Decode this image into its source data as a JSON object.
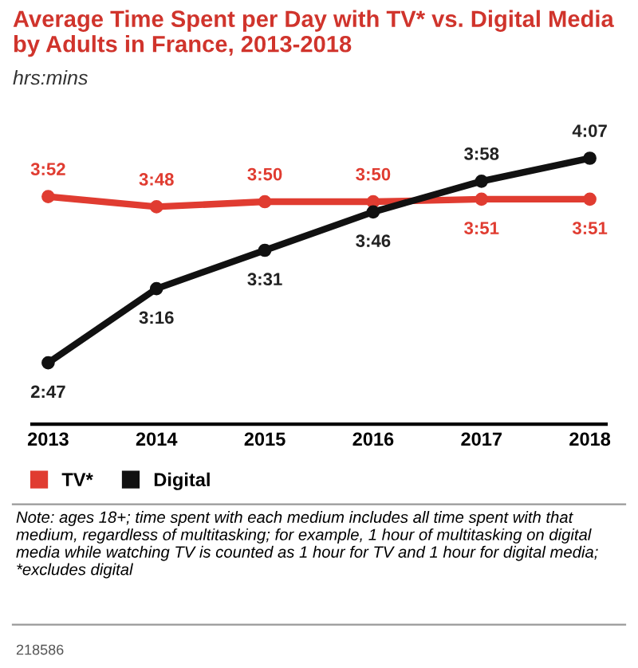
{
  "chart_data": {
    "type": "line",
    "title": "Average Time Spent per Day with TV* vs. Digital Media by Adults in France, 2013-2018",
    "subtitle": "hrs:mins",
    "categories": [
      "2013",
      "2014",
      "2015",
      "2016",
      "2017",
      "2018"
    ],
    "series": [
      {
        "name": "TV*",
        "color": "#e03c31",
        "values": [
          232,
          228,
          230,
          230,
          231,
          231
        ],
        "value_labels": [
          "3:52",
          "3:48",
          "3:50",
          "3:50",
          "3:51",
          "3:51"
        ]
      },
      {
        "name": "Digital",
        "color": "#111111",
        "values": [
          167,
          196,
          211,
          226,
          238,
          247
        ],
        "value_labels": [
          "2:47",
          "3:16",
          "3:31",
          "3:46",
          "3:58",
          "4:07"
        ]
      }
    ],
    "tick_labels": "x",
    "grid": false,
    "legend": "bottom left",
    "marker": "circle",
    "line_style": "solid",
    "annotations": [
      "Note: ages 18+; time spent with each medium includes all time spent with that medium, regardless of multitasking; for example, 1 hour of multitasking on digital media while watching TV is counted as 1 hour for TV and 1 hour for digital media; *excludes digital",
      "218586"
    ]
  }
}
